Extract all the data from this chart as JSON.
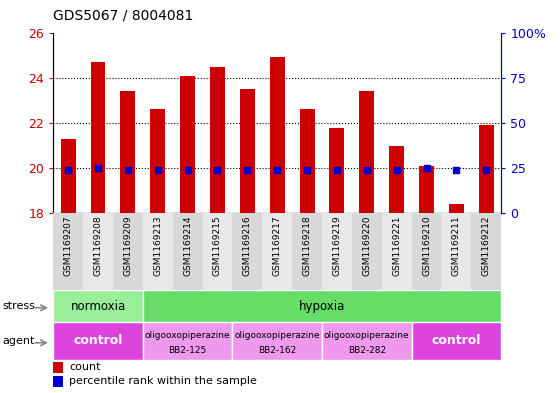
{
  "title": "GDS5067 / 8004081",
  "samples": [
    "GSM1169207",
    "GSM1169208",
    "GSM1169209",
    "GSM1169213",
    "GSM1169214",
    "GSM1169215",
    "GSM1169216",
    "GSM1169217",
    "GSM1169218",
    "GSM1169219",
    "GSM1169220",
    "GSM1169221",
    "GSM1169210",
    "GSM1169211",
    "GSM1169212"
  ],
  "counts": [
    21.3,
    24.7,
    23.4,
    22.6,
    24.1,
    24.5,
    23.5,
    24.9,
    22.6,
    21.8,
    23.4,
    21.0,
    20.1,
    18.4,
    21.9
  ],
  "percentile_ranks": [
    24,
    25,
    24,
    24,
    24,
    24,
    24,
    24,
    24,
    24,
    24,
    24,
    25,
    24,
    24
  ],
  "ymin": 18,
  "ymax": 26,
  "yticks": [
    18,
    20,
    22,
    24,
    26
  ],
  "bar_color": "#cc0000",
  "dot_color": "#0000cc",
  "stress_row": [
    {
      "label": "normoxia",
      "start": 0,
      "end": 3,
      "color": "#99ee99"
    },
    {
      "label": "hypoxia",
      "start": 3,
      "end": 15,
      "color": "#66dd66"
    }
  ],
  "agent_row": [
    {
      "label": "control",
      "start": 0,
      "end": 3,
      "color": "#dd44dd",
      "fontsize": 9,
      "bold": true,
      "lines": [
        "control"
      ]
    },
    {
      "label": "oligooxopiperazine\nBB2-125",
      "start": 3,
      "end": 6,
      "color": "#ee99ee",
      "fontsize": 6.5,
      "bold": false,
      "lines": [
        "oligooxopiperazine",
        "BB2-125"
      ]
    },
    {
      "label": "oligooxopiperazine\nBB2-162",
      "start": 6,
      "end": 9,
      "color": "#ee99ee",
      "fontsize": 6.5,
      "bold": false,
      "lines": [
        "oligooxopiperazine",
        "BB2-162"
      ]
    },
    {
      "label": "oligooxopiperazine\nBB2-282",
      "start": 9,
      "end": 12,
      "color": "#ee99ee",
      "fontsize": 6.5,
      "bold": false,
      "lines": [
        "oligooxopiperazine",
        "BB2-282"
      ]
    },
    {
      "label": "control",
      "start": 12,
      "end": 15,
      "color": "#dd44dd",
      "fontsize": 9,
      "bold": true,
      "lines": [
        "control"
      ]
    }
  ],
  "right_yticks": [
    0,
    25,
    50,
    75,
    100
  ],
  "right_yticklabels": [
    "0",
    "25",
    "50",
    "75",
    "100%"
  ],
  "bar_width": 0.5,
  "dot_size": 20
}
